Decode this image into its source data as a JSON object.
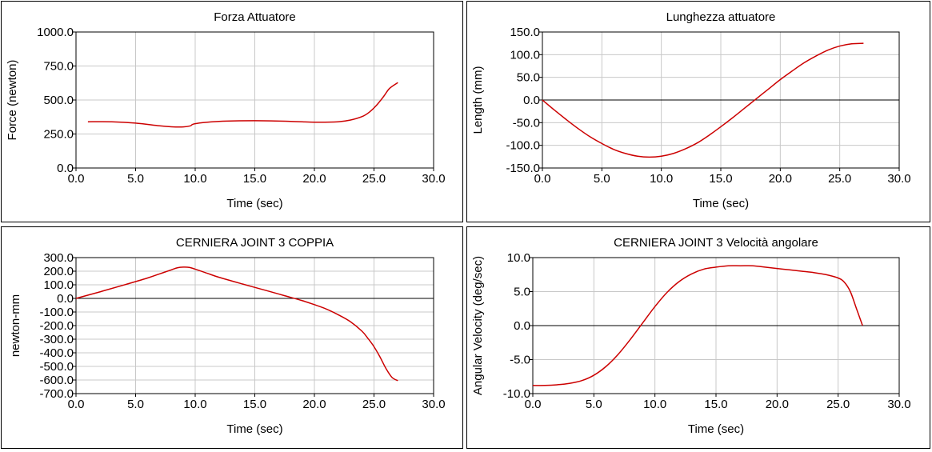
{
  "chart_data": [
    {
      "type": "line",
      "title": "Forza Attuatore",
      "xlabel": "Time (sec)",
      "ylabel": "Force (newton)",
      "xlim": [
        0,
        30
      ],
      "ylim": [
        0,
        1000
      ],
      "xticks": [
        0,
        5,
        10,
        15,
        20,
        25,
        30
      ],
      "yticks": [
        0,
        250,
        500,
        750,
        1000
      ],
      "xtick_labels": [
        "0.0",
        "5.0",
        "10.0",
        "15.0",
        "20.0",
        "25.0",
        "30.0"
      ],
      "ytick_labels": [
        "0.0",
        "250.0",
        "500.0",
        "750.0",
        "1000.0"
      ],
      "zero_line": false,
      "grid": true,
      "color": "#cc0000",
      "x": [
        1.0,
        3.0,
        5.0,
        7.0,
        8.0,
        9.0,
        9.6,
        10.0,
        12.0,
        15.0,
        18.0,
        20.0,
        22.0,
        23.0,
        24.0,
        24.6,
        25.2,
        25.8,
        26.3,
        27.0
      ],
      "y": [
        340,
        340,
        330,
        310,
        303,
        302,
        310,
        326,
        343,
        348,
        343,
        337,
        340,
        352,
        378,
        410,
        460,
        525,
        585,
        628
      ]
    },
    {
      "type": "line",
      "title": "Lunghezza attuatore",
      "xlabel": "Time (sec)",
      "ylabel": "Length (mm)",
      "xlim": [
        0,
        30
      ],
      "ylim": [
        -150,
        150
      ],
      "xticks": [
        0,
        5,
        10,
        15,
        20,
        25,
        30
      ],
      "yticks": [
        -150,
        -100,
        -50,
        0,
        50,
        100,
        150
      ],
      "xtick_labels": [
        "0.0",
        "5.0",
        "10.0",
        "15.0",
        "20.0",
        "25.0",
        "30.0"
      ],
      "ytick_labels": [
        "-150.0",
        "-100.0",
        "-50.0",
        "0.0",
        "50.0",
        "100.0",
        "150.0"
      ],
      "zero_line": true,
      "grid": true,
      "color": "#cc0000",
      "x": [
        0,
        1,
        2,
        3,
        4,
        5,
        6,
        7,
        8,
        9,
        10,
        11,
        12,
        13,
        14,
        15,
        16,
        17,
        18,
        19,
        20,
        21,
        22,
        23,
        24,
        25,
        26,
        27
      ],
      "y": [
        0,
        -22,
        -43,
        -63,
        -81,
        -96,
        -109,
        -118,
        -124,
        -126,
        -124,
        -118,
        -108,
        -95,
        -78,
        -59,
        -39,
        -18,
        3,
        24,
        45,
        64,
        82,
        97,
        110,
        119,
        124,
        125
      ]
    },
    {
      "type": "line",
      "title": "CERNIERA JOINT 3 COPPIA",
      "xlabel": "Time (sec)",
      "ylabel": "newton-mm",
      "xlim": [
        0,
        30
      ],
      "ylim": [
        -700,
        300
      ],
      "xticks": [
        0,
        5,
        10,
        15,
        20,
        25,
        30
      ],
      "yticks": [
        -700,
        -600,
        -500,
        -400,
        -300,
        -200,
        -100,
        0,
        100,
        200,
        300
      ],
      "xtick_labels": [
        "0.0",
        "5.0",
        "10.0",
        "15.0",
        "20.0",
        "25.0",
        "30.0"
      ],
      "ytick_labels": [
        "-700.0",
        "-600.0",
        "-500.0",
        "-400.0",
        "-300.0",
        "-200.0",
        "-100.0",
        "0.0",
        "100.0",
        "200.0",
        "300.0"
      ],
      "zero_line": true,
      "grid": true,
      "color": "#cc0000",
      "x": [
        0,
        2,
        4,
        6,
        7,
        8,
        8.5,
        9,
        9.5,
        10,
        11,
        12,
        14,
        16,
        17.5,
        19,
        20,
        21,
        22,
        23,
        24,
        24.5,
        25,
        25.5,
        26,
        26.5,
        27
      ],
      "y": [
        0,
        48,
        98,
        150,
        180,
        210,
        225,
        230,
        228,
        215,
        185,
        155,
        105,
        57,
        20,
        -17,
        -46,
        -78,
        -120,
        -170,
        -242,
        -295,
        -355,
        -430,
        -515,
        -580,
        -605
      ]
    },
    {
      "type": "line",
      "title": "CERNIERA JOINT 3 Velocità angolare",
      "xlabel": "Time (sec)",
      "ylabel": "Angular Velocity (deg/sec)",
      "xlim": [
        0,
        30
      ],
      "ylim": [
        -10,
        10
      ],
      "xticks": [
        0,
        5,
        10,
        15,
        20,
        25,
        30
      ],
      "yticks": [
        -10,
        -5,
        0,
        5,
        10
      ],
      "xtick_labels": [
        "0.0",
        "5.0",
        "10.0",
        "15.0",
        "20.0",
        "25.0",
        "30.0"
      ],
      "ytick_labels": [
        "-10.0",
        "-5.0",
        "0.0",
        "5.0",
        "10.0"
      ],
      "zero_line": true,
      "grid": true,
      "color": "#cc0000",
      "x": [
        0,
        1,
        2,
        3,
        4,
        5,
        6,
        7,
        8,
        9,
        10,
        11,
        12,
        13,
        14,
        15,
        16,
        17,
        18,
        19,
        20,
        21,
        22,
        23,
        24,
        25,
        25.5,
        26,
        26.5,
        27
      ],
      "y": [
        -8.8,
        -8.8,
        -8.7,
        -8.5,
        -8.1,
        -7.3,
        -6.0,
        -4.2,
        -2.0,
        0.4,
        2.8,
        4.9,
        6.5,
        7.6,
        8.3,
        8.6,
        8.8,
        8.8,
        8.8,
        8.6,
        8.4,
        8.2,
        8.0,
        7.8,
        7.5,
        7.0,
        6.4,
        5.0,
        2.5,
        0.0
      ]
    }
  ]
}
